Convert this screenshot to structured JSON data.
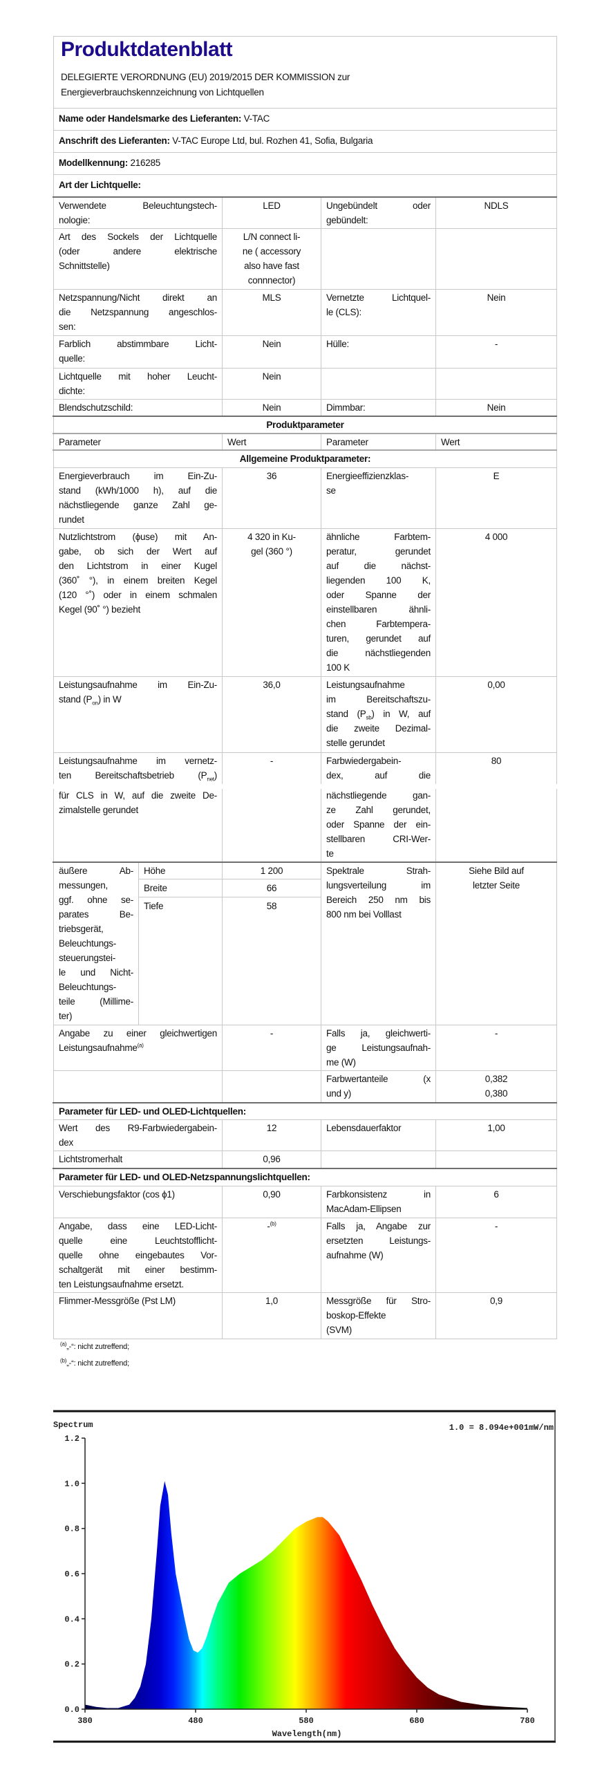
{
  "header": {
    "title": "Produktdatenblatt",
    "subtitle_lines": [
      "DELEGIERTE VERORDNUNG (EU) 2019/2015 DER KOMMISSION zur",
      "Energieverbrauchskennzeichnung von Lichtquellen"
    ],
    "supplier_name": [
      [
        {
          "b": "Name oder Handelsmarke des Lieferanten:"
        },
        {
          "t": "  V-TAC"
        }
      ]
    ],
    "supplier_address": [
      [
        {
          "b": "Anschrift des Lieferanten:"
        },
        {
          "t": "  V-TAC Europe Ltd, bul. Rozhen 41, Sofia, Bulgaria"
        }
      ]
    ],
    "model_id": [
      [
        {
          "b": "Modellkennung:"
        },
        {
          "t": "  216285"
        }
      ]
    ],
    "light_source_type": [
      [
        {
          "b": "Art der Lichtquelle:"
        }
      ]
    ]
  },
  "light_source": {
    "rows": [
      {
        "label": [
          "Verwendete Beleuchtungstech-",
          "nologie:"
        ],
        "value": [
          "LED"
        ],
        "label2": [
          "Ungebündelt oder",
          "gebündelt:"
        ],
        "value2": [
          "NDLS"
        ]
      },
      {
        "label": [
          "Art des Sockels der Lichtquelle",
          "(oder andere elektrische",
          "Schnittstelle)"
        ],
        "value": [
          "L/N connect li-",
          "ne ( accessory",
          "also have fast",
          "connnector)"
        ],
        "label2": [],
        "value2": []
      },
      {
        "label": [
          "Netzspannung/Nicht direkt an",
          "die Netzspannung angeschlos-",
          "sen:"
        ],
        "value": [
          "MLS"
        ],
        "label2": [
          "Vernetzte Lichtquel-",
          "le (CLS):"
        ],
        "value2": [
          "Nein"
        ]
      },
      {
        "label": [
          "Farblich abstimmbare Licht-",
          "quelle:"
        ],
        "value": [
          "Nein"
        ],
        "label2": [
          "Hülle:"
        ],
        "value2": [
          "-"
        ]
      },
      {
        "label": [
          "Lichtquelle mit hoher Leucht-",
          "dichte:"
        ],
        "value": [
          "Nein"
        ],
        "label2": [],
        "value2": []
      },
      {
        "label": [
          "Blendschutzschild:"
        ],
        "value": [
          "Nein"
        ],
        "label2": [
          "Dimmbar:"
        ],
        "value2": [
          "Nein"
        ]
      }
    ]
  },
  "product_parameters": {
    "title": [
      [
        {
          "b": "Produktparameter"
        }
      ]
    ],
    "headers": [
      [
        "Parameter"
      ],
      [
        "Wert"
      ],
      [
        "Parameter"
      ],
      [
        "Wert"
      ]
    ],
    "general_title": [
      [
        {
          "b": "Allgemeine Produktparameter:"
        }
      ]
    ],
    "rows": [
      {
        "label": [
          "Energieverbrauch im Ein-Zu-",
          "stand (kWh/1000 h), auf die",
          "nächstliegende ganze Zahl ge-",
          "rundet"
        ],
        "value": [
          "36"
        ],
        "label2": [
          "Energieeffizienzklas-",
          "se"
        ],
        "value2": [
          "E"
        ]
      },
      {
        "label": [
          "Nutzlichtstrom (ϕuse) mit An-",
          "gabe, ob sich der Wert auf",
          "den Lichtstrom in einer Kugel",
          "(360˚ °), in einem breiten Kegel",
          "(120 °˚) oder in einem schmalen",
          "Kegel (90˚ °) bezieht"
        ],
        "value": [
          "4 320 in Ku-",
          "gel (360 °)"
        ],
        "label2": [
          "ähnliche Farbtem-",
          "peratur, gerundet",
          "auf die nächst-",
          "liegenden 100 K,",
          "oder Spanne der",
          "einstellbaren ähnli-",
          "chen Farbtempera-",
          "turen, gerundet auf",
          "die nächstliegenden",
          "100 K"
        ],
        "value2": [
          "4 000"
        ]
      },
      {
        "label": [
          "Leistungsaufnahme im Ein-Zu-",
          [
            {
              "t": "stand (P"
            },
            {
              "sub": "on"
            },
            {
              "t": ") in W"
            }
          ]
        ],
        "value": [
          "36,0"
        ],
        "label2": [
          "Leistungsaufnahme",
          "im Bereitschaftszu-",
          [
            {
              "t": "stand (P"
            },
            {
              "sub": "sb"
            },
            {
              "t": ") in W, auf"
            }
          ],
          "die zweite Dezimal-",
          "stelle gerundet"
        ],
        "value2": [
          "0,00"
        ]
      },
      {
        "label": [
          "Leistungsaufnahme im vernetz-",
          [
            {
              "t": "ten Bereitschaftsbetrieb (P"
            },
            {
              "sub": "net"
            },
            {
              "t": ")"
            }
          ],
          "für CLS in W, auf die zweite De-",
          "zimalstelle gerundet"
        ],
        "value": [
          "-"
        ],
        "label2": [
          "Farbwiedergabein-",
          "dex, auf die",
          "nächstliegende gan-",
          "ze Zahl gerundet,",
          "oder Spanne der ein-",
          "stellbaren CRI-Wer-",
          "te"
        ],
        "value2": [
          "80"
        ]
      },
      {
        "label": [
          "äußere Ab-",
          "messungen,",
          "ggf. ohne se-",
          "parates Be-",
          "triebsgerät,",
          "Beleuchtungs-",
          "steuerungstei-",
          "le und Nicht-",
          "Beleuchtungs-",
          "teile (Millime-",
          "ter)"
        ],
        "dimensions": [
          {
            "name": [
              "Höhe"
            ],
            "value": [
              "1 200"
            ]
          },
          {
            "name": [
              "Breite"
            ],
            "value": [
              "66"
            ]
          },
          {
            "name": [
              "Tiefe"
            ],
            "value": [
              "58"
            ]
          }
        ],
        "label2": [
          "Spektrale Strah-",
          "lungsverteilung im",
          "Bereich 250 nm bis",
          "800 nm bei Volllast"
        ],
        "value2": [
          "Siehe Bild auf",
          "letzter Seite"
        ]
      },
      {
        "label": [
          "Angabe zu einer gleichwertigen",
          [
            {
              "t": "Leistungsaufnahme"
            },
            {
              "sup": "(a)"
            }
          ]
        ],
        "value": [
          "-"
        ],
        "label2": [
          "Falls ja, gleichwerti-",
          "ge Leistungsaufnah-",
          "me (W)"
        ],
        "value2": [
          "-"
        ]
      },
      {
        "label": [],
        "value": [],
        "label2": [
          "Farbwertanteile (x",
          "und y)"
        ],
        "value2": [
          "0,382",
          "0,380"
        ]
      }
    ]
  },
  "led_parameters": {
    "title": [
      [
        {
          "b": "Parameter für LED- und OLED-Lichtquellen:"
        }
      ]
    ],
    "rows": [
      {
        "label": [
          "Wert des R9-Farbwiedergabein-",
          "dex"
        ],
        "value": [
          "12"
        ],
        "label2": [
          "Lebensdauerfaktor"
        ],
        "value2": [
          "1,00"
        ]
      },
      {
        "label": [
          "Lichtstromerhalt"
        ],
        "value": [
          "0,96"
        ],
        "label2": [],
        "value2": []
      }
    ]
  },
  "mains_parameters": {
    "title": [
      [
        {
          "b": "Parameter für LED- und OLED-Netzspannungslichtquellen:"
        }
      ]
    ],
    "rows": [
      {
        "label": [
          "Verschiebungsfaktor (cos ϕ1)"
        ],
        "value": [
          "0,90"
        ],
        "label2": [
          "Farbkonsistenz in",
          "MacAdam-Ellipsen"
        ],
        "value2": [
          "6"
        ]
      },
      {
        "label": [
          "Angabe, dass eine LED-Licht-",
          "quelle eine Leuchtstofflicht-",
          "quelle ohne eingebautes Vor-",
          "schaltgerät mit einer bestimm-",
          "ten Leistungsaufnahme ersetzt."
        ],
        "value": [
          [
            {
              "t": "-"
            },
            {
              "sup": "(b)"
            }
          ]
        ],
        "label2": [
          "Falls ja, Angabe zur",
          "ersetzten Leistungs-",
          "aufnahme (W)"
        ],
        "value2": [
          "-"
        ]
      },
      {
        "label": [
          "Flimmer-Messgröße (Pst LM)"
        ],
        "value": [
          "1,0"
        ],
        "label2": [
          "Messgröße für Stro-",
          "boskop-Effekte",
          "(SVM)"
        ],
        "value2": [
          "0,9"
        ]
      }
    ]
  },
  "footnotes": [
    {
      "mark": "(a)",
      "text": "„-“: nicht zutreffend;"
    },
    {
      "mark": "(b)",
      "text": "„-“: nicht zutreffend;"
    }
  ],
  "colors": {
    "title": "#1c0c8a",
    "border": "#c8c8c8"
  },
  "chart_data": {
    "type": "area",
    "title": "Spectrum",
    "annotation": "1.0 = 8.094e+001mW/nm",
    "xlabel": "Wavelength(nm)",
    "ylabel": "",
    "xlim": [
      380,
      780
    ],
    "ylim": [
      0,
      1.2
    ],
    "xticks": [
      "380",
      "480",
      "580",
      "680",
      "780"
    ],
    "yticks": [
      "0.0",
      "0.2",
      "0.4",
      "0.6",
      "0.8",
      "1.0",
      "1.2"
    ],
    "grid": false,
    "fill": "visible-spectrum gradient",
    "x": [
      380,
      390,
      400,
      410,
      420,
      425,
      430,
      435,
      440,
      445,
      448,
      452,
      455,
      458,
      462,
      466,
      470,
      474,
      478,
      482,
      486,
      490,
      495,
      500,
      510,
      520,
      530,
      540,
      550,
      560,
      570,
      580,
      590,
      595,
      600,
      610,
      620,
      630,
      640,
      650,
      660,
      670,
      680,
      690,
      700,
      720,
      740,
      760,
      780
    ],
    "y": [
      0.02,
      0.01,
      0.005,
      0.005,
      0.02,
      0.05,
      0.1,
      0.2,
      0.4,
      0.7,
      0.9,
      1.01,
      0.95,
      0.78,
      0.6,
      0.5,
      0.4,
      0.31,
      0.26,
      0.25,
      0.27,
      0.32,
      0.4,
      0.47,
      0.56,
      0.6,
      0.63,
      0.66,
      0.7,
      0.75,
      0.8,
      0.83,
      0.85,
      0.85,
      0.83,
      0.77,
      0.67,
      0.57,
      0.46,
      0.36,
      0.27,
      0.2,
      0.14,
      0.095,
      0.065,
      0.032,
      0.017,
      0.01,
      0.005
    ]
  }
}
